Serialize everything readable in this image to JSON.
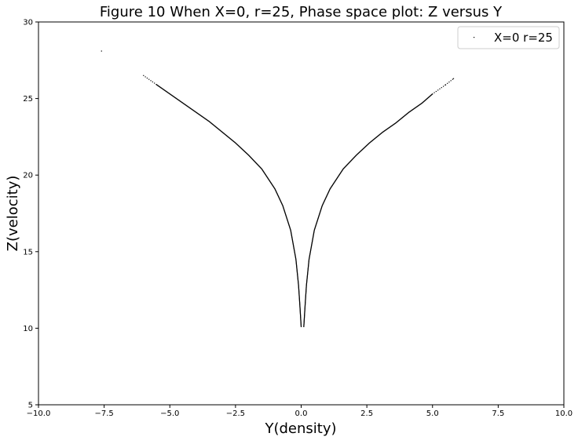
{
  "chart_data": {
    "type": "scatter",
    "title": "Figure 10 When X=0, r=25, Phase space plot: Z versus Y",
    "xlabel": "Y(density)",
    "ylabel": "Z(velocity)",
    "xlim": [
      -10.0,
      10.0
    ],
    "ylim": [
      5,
      30
    ],
    "x_ticks": [
      "−10.0",
      "−7.5",
      "−5.0",
      "−2.5",
      "0.0",
      "2.5",
      "5.0",
      "7.5",
      "10.0"
    ],
    "x_tick_values": [
      -10.0,
      -7.5,
      -5.0,
      -2.5,
      0.0,
      2.5,
      5.0,
      7.5,
      10.0
    ],
    "y_ticks": [
      "5",
      "10",
      "15",
      "20",
      "25",
      "30"
    ],
    "y_tick_values": [
      5,
      10,
      15,
      20,
      25,
      30
    ],
    "grid": false,
    "legend_position": "top-right",
    "marker_color": "#000000",
    "series": [
      {
        "name": "X=0 r=25",
        "branches": [
          {
            "side": "left",
            "points": [
              {
                "x": -7.6,
                "y": 28.1
              },
              {
                "x": -6.0,
                "y": 26.5
              },
              {
                "x": -5.5,
                "y": 25.9
              },
              {
                "x": -5.0,
                "y": 25.3
              },
              {
                "x": -4.5,
                "y": 24.7
              },
              {
                "x": -4.0,
                "y": 24.1
              },
              {
                "x": -3.5,
                "y": 23.5
              },
              {
                "x": -3.0,
                "y": 22.8
              },
              {
                "x": -2.5,
                "y": 22.1
              },
              {
                "x": -2.0,
                "y": 21.3
              },
              {
                "x": -1.5,
                "y": 20.4
              },
              {
                "x": -1.0,
                "y": 19.1
              },
              {
                "x": -0.7,
                "y": 18.0
              },
              {
                "x": -0.4,
                "y": 16.4
              },
              {
                "x": -0.2,
                "y": 14.5
              },
              {
                "x": -0.1,
                "y": 12.8
              },
              {
                "x": -0.05,
                "y": 11.5
              },
              {
                "x": 0.0,
                "y": 10.1
              }
            ]
          },
          {
            "side": "right",
            "points": [
              {
                "x": 0.1,
                "y": 10.1
              },
              {
                "x": 0.15,
                "y": 11.5
              },
              {
                "x": 0.2,
                "y": 12.8
              },
              {
                "x": 0.3,
                "y": 14.5
              },
              {
                "x": 0.5,
                "y": 16.4
              },
              {
                "x": 0.8,
                "y": 18.0
              },
              {
                "x": 1.1,
                "y": 19.1
              },
              {
                "x": 1.6,
                "y": 20.4
              },
              {
                "x": 2.1,
                "y": 21.3
              },
              {
                "x": 2.6,
                "y": 22.1
              },
              {
                "x": 3.1,
                "y": 22.8
              },
              {
                "x": 3.6,
                "y": 23.4
              },
              {
                "x": 4.1,
                "y": 24.1
              },
              {
                "x": 4.6,
                "y": 24.7
              },
              {
                "x": 5.0,
                "y": 25.3
              },
              {
                "x": 5.5,
                "y": 25.9
              },
              {
                "x": 5.8,
                "y": 26.3
              }
            ]
          }
        ]
      }
    ]
  }
}
